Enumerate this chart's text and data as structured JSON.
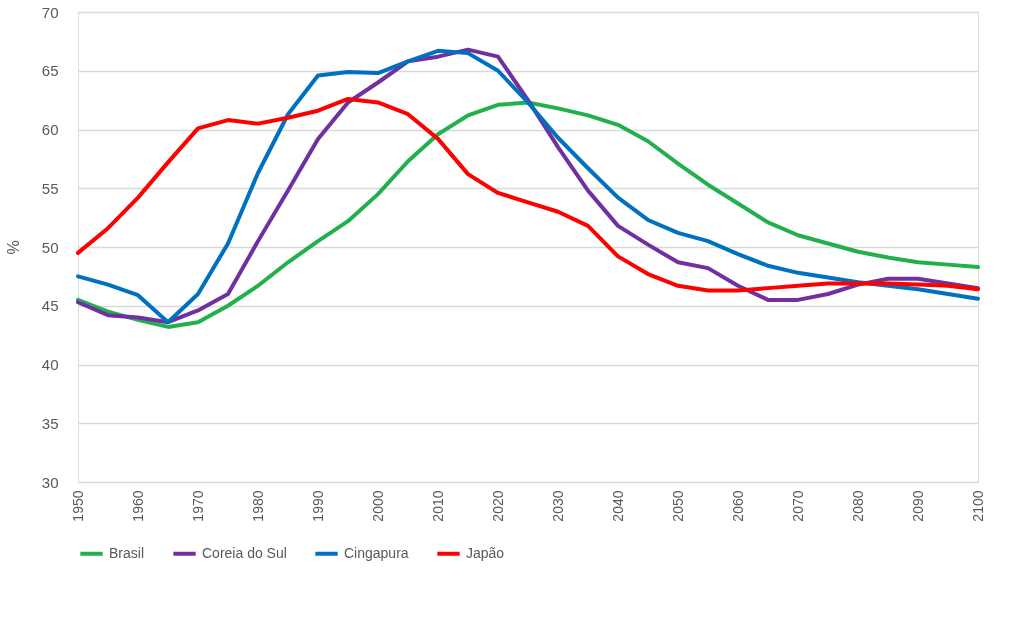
{
  "chart_data": {
    "type": "line",
    "ylabel": "%",
    "x": [
      1950,
      1955,
      1960,
      1965,
      1970,
      1975,
      1980,
      1985,
      1990,
      1995,
      2000,
      2005,
      2010,
      2015,
      2020,
      2025,
      2030,
      2035,
      2040,
      2045,
      2050,
      2055,
      2060,
      2065,
      2070,
      2075,
      2080,
      2085,
      2090,
      2095,
      2100
    ],
    "xlim": [
      1950,
      2100
    ],
    "xticks": [
      1950,
      1960,
      1970,
      1980,
      1990,
      2000,
      2010,
      2020,
      2030,
      2040,
      2050,
      2060,
      2070,
      2080,
      2090,
      2100
    ],
    "ylim": [
      30,
      70
    ],
    "yticks": [
      30,
      35,
      40,
      45,
      50,
      55,
      60,
      65,
      70
    ],
    "grid": "y",
    "legend": "bottom",
    "line_style": "solid",
    "marker": "none",
    "series": [
      {
        "name": "Brasil",
        "color": "#22b04c",
        "values": [
          45.5,
          44.5,
          43.8,
          43.2,
          43.6,
          45.0,
          46.7,
          48.7,
          50.5,
          52.2,
          54.5,
          57.3,
          59.6,
          61.2,
          62.1,
          62.3,
          61.8,
          61.2,
          60.4,
          59.0,
          57.1,
          55.3,
          53.7,
          52.1,
          51.0,
          50.3,
          49.6,
          49.1,
          48.7,
          48.5,
          48.3
        ]
      },
      {
        "name": "Coreia do Sul",
        "color": "#7030a0",
        "values": [
          45.3,
          44.2,
          44.0,
          43.6,
          44.6,
          46.0,
          50.5,
          54.8,
          59.2,
          62.3,
          64.0,
          65.8,
          66.2,
          66.8,
          66.2,
          62.5,
          58.5,
          54.8,
          51.8,
          50.2,
          48.7,
          48.2,
          46.7,
          45.5,
          45.5,
          46.0,
          46.8,
          47.3,
          47.3,
          46.9,
          46.5
        ]
      },
      {
        "name": "Cingapura",
        "color": "#0070c0",
        "values": [
          47.5,
          46.8,
          45.9,
          43.6,
          46.0,
          50.3,
          56.3,
          61.3,
          64.6,
          64.9,
          64.8,
          65.8,
          66.7,
          66.5,
          65.0,
          62.3,
          59.3,
          56.7,
          54.2,
          52.3,
          51.2,
          50.5,
          49.4,
          48.4,
          47.8,
          47.4,
          47.0,
          46.7,
          46.4,
          46.0,
          45.6
        ]
      },
      {
        "name": "Japão",
        "color": "#ff0000",
        "values": [
          49.5,
          51.6,
          54.2,
          57.2,
          60.1,
          60.8,
          60.5,
          61.0,
          61.6,
          62.6,
          62.3,
          61.3,
          59.2,
          56.2,
          54.6,
          53.8,
          53.0,
          51.8,
          49.2,
          47.7,
          46.7,
          46.3,
          46.3,
          46.5,
          46.7,
          46.9,
          46.9,
          46.9,
          46.8,
          46.7,
          46.4
        ]
      }
    ]
  }
}
